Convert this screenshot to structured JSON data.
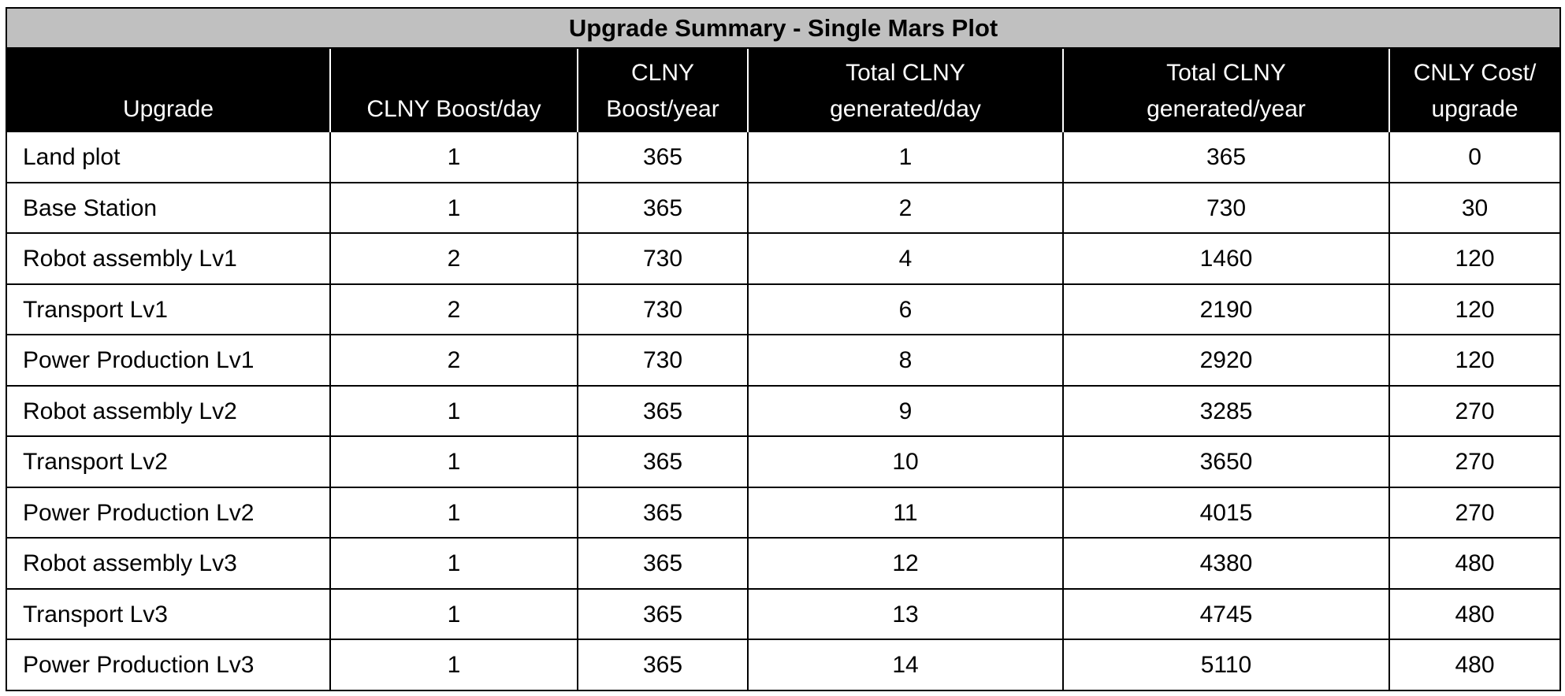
{
  "table": {
    "title": "Upgrade Summary - Single Mars Plot",
    "headers": [
      [
        "Upgrade"
      ],
      [
        "CLNY Boost/day"
      ],
      [
        "CLNY",
        "Boost/year"
      ],
      [
        "Total CLNY",
        "generated/day"
      ],
      [
        "Total CLNY",
        "generated/year"
      ],
      [
        "CNLY Cost/",
        "upgrade"
      ]
    ],
    "rows": [
      [
        "Land plot",
        "1",
        "365",
        "1",
        "365",
        "0"
      ],
      [
        "Base Station",
        "1",
        "365",
        "2",
        "730",
        "30"
      ],
      [
        "Robot assembly Lv1",
        "2",
        "730",
        "4",
        "1460",
        "120"
      ],
      [
        "Transport Lv1",
        "2",
        "730",
        "6",
        "2190",
        "120"
      ],
      [
        "Power Production Lv1",
        "2",
        "730",
        "8",
        "2920",
        "120"
      ],
      [
        "Robot assembly Lv2",
        "1",
        "365",
        "9",
        "3285",
        "270"
      ],
      [
        "Transport Lv2",
        "1",
        "365",
        "10",
        "3650",
        "270"
      ],
      [
        "Power Production Lv2",
        "1",
        "365",
        "11",
        "4015",
        "270"
      ],
      [
        "Robot assembly Lv3",
        "1",
        "365",
        "12",
        "4380",
        "480"
      ],
      [
        "Transport Lv3",
        "1",
        "365",
        "13",
        "4745",
        "480"
      ],
      [
        "Power Production Lv3",
        "1",
        "365",
        "14",
        "5110",
        "480"
      ]
    ]
  },
  "colors": {
    "title_background": "#c0c0c0",
    "header_background": "#000000",
    "header_text": "#ffffff",
    "cell_background": "#ffffff",
    "grid_lines": "#000000"
  }
}
